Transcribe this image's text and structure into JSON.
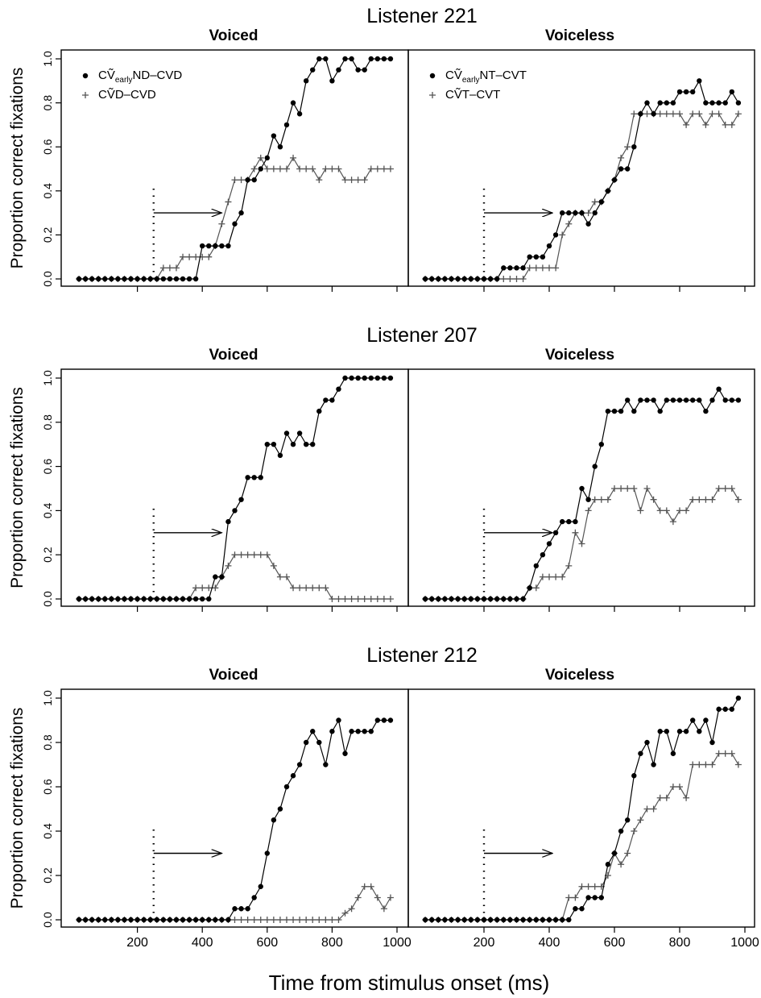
{
  "figure": {
    "ylabel": "Proportion correct fixations",
    "xlabel": "Time from stimulus onset (ms)",
    "xticks": [
      200,
      400,
      600,
      800,
      1000
    ],
    "yticks": [
      "0.0",
      "0.2",
      "0.4",
      "0.6",
      "0.8",
      "1.0"
    ]
  },
  "colors": {
    "ink": "#000000",
    "plus_series": "#555555"
  },
  "chart_data": [
    {
      "type": "line",
      "title": "Listener 221",
      "subtitle": "Voiced",
      "xlim": [
        0,
        1000
      ],
      "ylim": [
        0,
        1
      ],
      "legend": {
        "position": "top-left",
        "entries": [
          {
            "marker": "dot",
            "pre": "CṼ",
            "sub": "early",
            "post": "ND–CVD"
          },
          {
            "marker": "plus",
            "pre": "CṼ",
            "sub": "",
            "post": "D–CVD"
          }
        ]
      },
      "annotation": {
        "dotted_line_x": 250,
        "arrow_from": [
          250,
          0.3
        ],
        "arrow_to": [
          460,
          0.3
        ]
      },
      "x": [
        20,
        40,
        60,
        80,
        100,
        120,
        140,
        160,
        180,
        200,
        220,
        240,
        260,
        280,
        300,
        320,
        340,
        360,
        380,
        400,
        420,
        440,
        460,
        480,
        500,
        520,
        540,
        560,
        580,
        600,
        620,
        640,
        660,
        680,
        700,
        720,
        740,
        760,
        780,
        800,
        820,
        840,
        860,
        880,
        900,
        920,
        940,
        960,
        980
      ],
      "series": [
        {
          "name": "CṼearlyND–CVD",
          "marker": "dot",
          "values": [
            0,
            0,
            0,
            0,
            0,
            0,
            0,
            0,
            0,
            0,
            0,
            0,
            0,
            0,
            0,
            0,
            0,
            0,
            0,
            0.15,
            0.15,
            0.15,
            0.15,
            0.15,
            0.25,
            0.3,
            0.45,
            0.45,
            0.5,
            0.55,
            0.65,
            0.6,
            0.7,
            0.8,
            0.75,
            0.9,
            0.95,
            1,
            1,
            0.9,
            0.95,
            1,
            1,
            0.95,
            0.95,
            1,
            1,
            1,
            1
          ]
        },
        {
          "name": "CṼD–CVD",
          "marker": "plus",
          "values": [
            0,
            0,
            0,
            0,
            0,
            0,
            0,
            0,
            0,
            0,
            0,
            0,
            0,
            0.05,
            0.05,
            0.05,
            0.1,
            0.1,
            0.1,
            0.1,
            0.1,
            0.15,
            0.25,
            0.35,
            0.45,
            0.45,
            0.45,
            0.5,
            0.55,
            0.5,
            0.5,
            0.5,
            0.5,
            0.55,
            0.5,
            0.5,
            0.5,
            0.45,
            0.5,
            0.5,
            0.5,
            0.45,
            0.45,
            0.45,
            0.45,
            0.5,
            0.5,
            0.5,
            0.5
          ]
        }
      ]
    },
    {
      "type": "line",
      "title": "",
      "subtitle": "Voiceless",
      "xlim": [
        0,
        1000
      ],
      "ylim": [
        0,
        1
      ],
      "legend": {
        "position": "top-left",
        "entries": [
          {
            "marker": "dot",
            "pre": "CṼ",
            "sub": "early",
            "post": "NT–CVT"
          },
          {
            "marker": "plus",
            "pre": "CṼ",
            "sub": "",
            "post": "T–CVT"
          }
        ]
      },
      "annotation": {
        "dotted_line_x": 200,
        "arrow_from": [
          200,
          0.3
        ],
        "arrow_to": [
          410,
          0.3
        ]
      },
      "x": [
        20,
        40,
        60,
        80,
        100,
        120,
        140,
        160,
        180,
        200,
        220,
        240,
        260,
        280,
        300,
        320,
        340,
        360,
        380,
        400,
        420,
        440,
        460,
        480,
        500,
        520,
        540,
        560,
        580,
        600,
        620,
        640,
        660,
        680,
        700,
        720,
        740,
        760,
        780,
        800,
        820,
        840,
        860,
        880,
        900,
        920,
        940,
        960,
        980
      ],
      "series": [
        {
          "name": "CṼearlyNT–CVT",
          "marker": "dot",
          "values": [
            0,
            0,
            0,
            0,
            0,
            0,
            0,
            0,
            0,
            0,
            0,
            0,
            0.05,
            0.05,
            0.05,
            0.05,
            0.1,
            0.1,
            0.1,
            0.15,
            0.2,
            0.3,
            0.3,
            0.3,
            0.3,
            0.25,
            0.3,
            0.35,
            0.4,
            0.45,
            0.5,
            0.5,
            0.6,
            0.75,
            0.8,
            0.75,
            0.8,
            0.8,
            0.8,
            0.85,
            0.85,
            0.85,
            0.9,
            0.8,
            0.8,
            0.8,
            0.8,
            0.85,
            0.8
          ]
        },
        {
          "name": "CṼT–CVT",
          "marker": "plus",
          "values": [
            0,
            0,
            0,
            0,
            0,
            0,
            0,
            0,
            0,
            0,
            0,
            0,
            0,
            0,
            0,
            0,
            0.05,
            0.05,
            0.05,
            0.05,
            0.05,
            0.2,
            0.25,
            0.3,
            0.3,
            0.3,
            0.35,
            0.35,
            0.4,
            0.45,
            0.55,
            0.6,
            0.75,
            0.75,
            0.75,
            0.75,
            0.75,
            0.75,
            0.75,
            0.75,
            0.7,
            0.75,
            0.75,
            0.7,
            0.75,
            0.75,
            0.7,
            0.7,
            0.75
          ]
        }
      ]
    },
    {
      "type": "line",
      "title": "Listener 207",
      "subtitle": "Voiced",
      "xlim": [
        0,
        1000
      ],
      "ylim": [
        0,
        1
      ],
      "annotation": {
        "dotted_line_x": 250,
        "arrow_from": [
          250,
          0.3
        ],
        "arrow_to": [
          460,
          0.3
        ]
      },
      "x": [
        20,
        40,
        60,
        80,
        100,
        120,
        140,
        160,
        180,
        200,
        220,
        240,
        260,
        280,
        300,
        320,
        340,
        360,
        380,
        400,
        420,
        440,
        460,
        480,
        500,
        520,
        540,
        560,
        580,
        600,
        620,
        640,
        660,
        680,
        700,
        720,
        740,
        760,
        780,
        800,
        820,
        840,
        860,
        880,
        900,
        920,
        940,
        960,
        980
      ],
      "series": [
        {
          "name": "CṼearlyND–CVD",
          "marker": "dot",
          "values": [
            0,
            0,
            0,
            0,
            0,
            0,
            0,
            0,
            0,
            0,
            0,
            0,
            0,
            0,
            0,
            0,
            0,
            0,
            0,
            0,
            0,
            0.1,
            0.1,
            0.35,
            0.4,
            0.45,
            0.55,
            0.55,
            0.55,
            0.7,
            0.7,
            0.65,
            0.75,
            0.7,
            0.75,
            0.7,
            0.7,
            0.85,
            0.9,
            0.9,
            0.95,
            1,
            1,
            1,
            1,
            1,
            1,
            1,
            1
          ]
        },
        {
          "name": "CṼD–CVD",
          "marker": "plus",
          "values": [
            0,
            0,
            0,
            0,
            0,
            0,
            0,
            0,
            0,
            0,
            0,
            0,
            0,
            0,
            0,
            0,
            0,
            0,
            0.05,
            0.05,
            0.05,
            0.05,
            0.1,
            0.15,
            0.2,
            0.2,
            0.2,
            0.2,
            0.2,
            0.2,
            0.15,
            0.1,
            0.1,
            0.05,
            0.05,
            0.05,
            0.05,
            0.05,
            0.05,
            0,
            0,
            0,
            0,
            0,
            0,
            0,
            0,
            0,
            0
          ]
        }
      ]
    },
    {
      "type": "line",
      "title": "",
      "subtitle": "Voiceless",
      "xlim": [
        0,
        1000
      ],
      "ylim": [
        0,
        1
      ],
      "annotation": {
        "dotted_line_x": 200,
        "arrow_from": [
          200,
          0.3
        ],
        "arrow_to": [
          410,
          0.3
        ]
      },
      "x": [
        20,
        40,
        60,
        80,
        100,
        120,
        140,
        160,
        180,
        200,
        220,
        240,
        260,
        280,
        300,
        320,
        340,
        360,
        380,
        400,
        420,
        440,
        460,
        480,
        500,
        520,
        540,
        560,
        580,
        600,
        620,
        640,
        660,
        680,
        700,
        720,
        740,
        760,
        780,
        800,
        820,
        840,
        860,
        880,
        900,
        920,
        940,
        960,
        980
      ],
      "series": [
        {
          "name": "CṼearlyNT–CVT",
          "marker": "dot",
          "values": [
            0,
            0,
            0,
            0,
            0,
            0,
            0,
            0,
            0,
            0,
            0,
            0,
            0,
            0,
            0,
            0,
            0.05,
            0.15,
            0.2,
            0.25,
            0.3,
            0.35,
            0.35,
            0.35,
            0.5,
            0.45,
            0.6,
            0.7,
            0.85,
            0.85,
            0.85,
            0.9,
            0.85,
            0.9,
            0.9,
            0.9,
            0.85,
            0.9,
            0.9,
            0.9,
            0.9,
            0.9,
            0.9,
            0.85,
            0.9,
            0.95,
            0.9,
            0.9,
            0.9
          ]
        },
        {
          "name": "CṼT–CVT",
          "marker": "plus",
          "values": [
            0,
            0,
            0,
            0,
            0,
            0,
            0,
            0,
            0,
            0,
            0,
            0,
            0,
            0,
            0,
            0,
            0.05,
            0.05,
            0.1,
            0.1,
            0.1,
            0.1,
            0.15,
            0.3,
            0.25,
            0.4,
            0.45,
            0.45,
            0.45,
            0.5,
            0.5,
            0.5,
            0.5,
            0.4,
            0.5,
            0.45,
            0.4,
            0.4,
            0.35,
            0.4,
            0.4,
            0.45,
            0.45,
            0.45,
            0.45,
            0.5,
            0.5,
            0.5,
            0.45
          ]
        }
      ]
    },
    {
      "type": "line",
      "title": "Listener 212",
      "subtitle": "Voiced",
      "xlim": [
        0,
        1000
      ],
      "ylim": [
        0,
        1
      ],
      "annotation": {
        "dotted_line_x": 250,
        "arrow_from": [
          250,
          0.3
        ],
        "arrow_to": [
          460,
          0.3
        ]
      },
      "x": [
        20,
        40,
        60,
        80,
        100,
        120,
        140,
        160,
        180,
        200,
        220,
        240,
        260,
        280,
        300,
        320,
        340,
        360,
        380,
        400,
        420,
        440,
        460,
        480,
        500,
        520,
        540,
        560,
        580,
        600,
        620,
        640,
        660,
        680,
        700,
        720,
        740,
        760,
        780,
        800,
        820,
        840,
        860,
        880,
        900,
        920,
        940,
        960,
        980
      ],
      "series": [
        {
          "name": "CṼearlyND–CVD",
          "marker": "dot",
          "values": [
            0,
            0,
            0,
            0,
            0,
            0,
            0,
            0,
            0,
            0,
            0,
            0,
            0,
            0,
            0,
            0,
            0,
            0,
            0,
            0,
            0,
            0,
            0,
            0,
            0.05,
            0.05,
            0.05,
            0.1,
            0.15,
            0.3,
            0.45,
            0.5,
            0.6,
            0.65,
            0.7,
            0.8,
            0.85,
            0.8,
            0.7,
            0.85,
            0.9,
            0.75,
            0.85,
            0.85,
            0.85,
            0.85,
            0.9,
            0.9,
            0.9
          ]
        },
        {
          "name": "CṼD–CVD",
          "marker": "plus",
          "values": [
            0,
            0,
            0,
            0,
            0,
            0,
            0,
            0,
            0,
            0,
            0,
            0,
            0,
            0,
            0,
            0,
            0,
            0,
            0,
            0,
            0,
            0,
            0,
            0,
            0,
            0,
            0,
            0,
            0,
            0,
            0,
            0,
            0,
            0,
            0,
            0,
            0,
            0,
            0,
            0,
            0,
            0.03,
            0.05,
            0.1,
            0.15,
            0.15,
            0.1,
            0.05,
            0.1
          ]
        }
      ]
    },
    {
      "type": "line",
      "title": "",
      "subtitle": "Voiceless",
      "xlim": [
        0,
        1000
      ],
      "ylim": [
        0,
        1
      ],
      "annotation": {
        "dotted_line_x": 200,
        "arrow_from": [
          200,
          0.3
        ],
        "arrow_to": [
          410,
          0.3
        ]
      },
      "x": [
        20,
        40,
        60,
        80,
        100,
        120,
        140,
        160,
        180,
        200,
        220,
        240,
        260,
        280,
        300,
        320,
        340,
        360,
        380,
        400,
        420,
        440,
        460,
        480,
        500,
        520,
        540,
        560,
        580,
        600,
        620,
        640,
        660,
        680,
        700,
        720,
        740,
        760,
        780,
        800,
        820,
        840,
        860,
        880,
        900,
        920,
        940,
        960,
        980
      ],
      "series": [
        {
          "name": "CṼearlyNT–CVT",
          "marker": "dot",
          "values": [
            0,
            0,
            0,
            0,
            0,
            0,
            0,
            0,
            0,
            0,
            0,
            0,
            0,
            0,
            0,
            0,
            0,
            0,
            0,
            0,
            0,
            0,
            0,
            0.05,
            0.05,
            0.1,
            0.1,
            0.1,
            0.25,
            0.3,
            0.4,
            0.45,
            0.65,
            0.75,
            0.8,
            0.7,
            0.85,
            0.85,
            0.75,
            0.85,
            0.85,
            0.9,
            0.85,
            0.9,
            0.8,
            0.95,
            0.95,
            0.95,
            1
          ]
        },
        {
          "name": "CṼT–CVT",
          "marker": "plus",
          "values": [
            0,
            0,
            0,
            0,
            0,
            0,
            0,
            0,
            0,
            0,
            0,
            0,
            0,
            0,
            0,
            0,
            0,
            0,
            0,
            0,
            0,
            0,
            0.1,
            0.1,
            0.15,
            0.15,
            0.15,
            0.15,
            0.2,
            0.3,
            0.25,
            0.3,
            0.4,
            0.45,
            0.5,
            0.5,
            0.55,
            0.55,
            0.6,
            0.6,
            0.55,
            0.7,
            0.7,
            0.7,
            0.7,
            0.75,
            0.75,
            0.75,
            0.7
          ]
        }
      ]
    }
  ]
}
